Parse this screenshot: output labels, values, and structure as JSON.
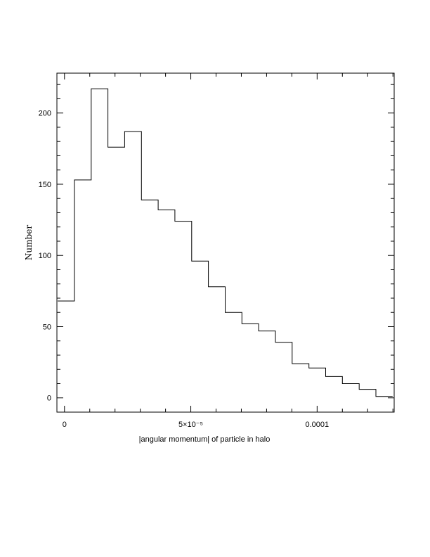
{
  "chart_data": {
    "type": "histogram",
    "xlabel": "|angular momentum| of particle in halo",
    "ylabel": "Number",
    "xlim": [
      -3e-06,
      0.0001305
    ],
    "ylim": [
      -10,
      228
    ],
    "x_ticks": [
      {
        "value": 0,
        "label": "0"
      },
      {
        "value": 5e-05,
        "label": "5×10⁻⁵"
      },
      {
        "value": 0.0001,
        "label": "0.0001"
      }
    ],
    "y_ticks": [
      {
        "value": 0,
        "label": "0"
      },
      {
        "value": 50,
        "label": "50"
      },
      {
        "value": 100,
        "label": "100"
      },
      {
        "value": 150,
        "label": "150"
      },
      {
        "value": 200,
        "label": "200"
      }
    ],
    "bin_start": -2.7e-06,
    "bin_width": 6.63e-06,
    "counts": [
      68,
      153,
      217,
      176,
      187,
      139,
      132,
      124,
      96,
      78,
      60,
      52,
      47,
      39,
      24,
      21,
      15,
      10,
      6,
      1
    ]
  }
}
